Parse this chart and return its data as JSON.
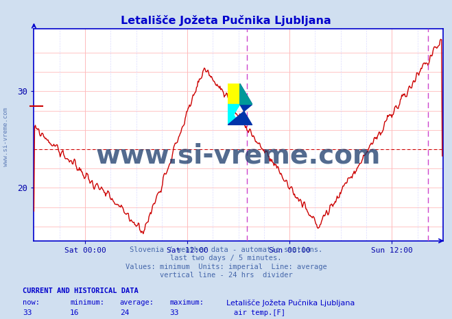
{
  "title": "Letališče Jožeta Pučnika Ljubljana",
  "title_color": "#0000cc",
  "bg_color": "#d0dff0",
  "plot_bg_color": "#ffffff",
  "line_color": "#cc0000",
  "grid_color": "#ffbbbb",
  "grid_color2": "#ddddff",
  "axis_color": "#0000cc",
  "tick_color": "#0000aa",
  "ylim": [
    14.5,
    36.5
  ],
  "yticks": [
    20,
    30
  ],
  "xlim": [
    0,
    576
  ],
  "x_tick_positions": [
    72,
    216,
    360,
    504
  ],
  "x_tick_labels": [
    "Sat 00:00",
    "Sat 12:00",
    "Sun 00:00",
    "Sun 12:00"
  ],
  "avg_line_y": 24,
  "avg_line_color": "#cc0000",
  "vertical_line_x": 300,
  "vertical_line_color": "#cc44cc",
  "end_line_x": 555,
  "watermark": "www.si-vreme.com",
  "watermark_color": "#1a3a6a",
  "subtitle_lines": [
    "Slovenia / weather data - automatic stations.",
    "last two days / 5 minutes.",
    "Values: minimum  Units: imperial  Line: average",
    "vertical line - 24 hrs  divider"
  ],
  "subtitle_color": "#4466aa",
  "footer_bold": "CURRENT AND HISTORICAL DATA",
  "footer_color": "#0000cc",
  "footer_labels": [
    "now:",
    "minimum:",
    "average:",
    "maximum:"
  ],
  "footer_values": [
    "33",
    "16",
    "24",
    "33"
  ],
  "footer_station": "Letališče Jožeta Pučnika Ljubljana",
  "footer_series": "air temp.[F]",
  "marker_y": 28.5
}
